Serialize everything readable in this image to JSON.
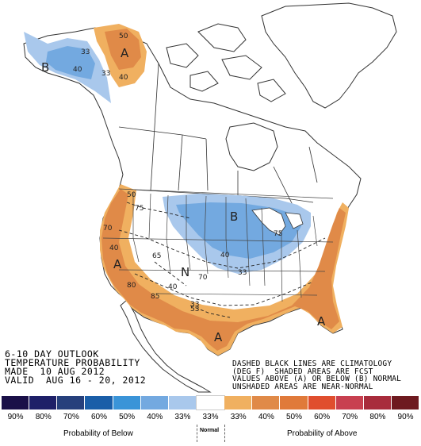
{
  "title": {
    "line1": "6-10 DAY OUTLOOK",
    "line2": "TEMPERATURE PROBABILITY",
    "line3": "MADE  10 AUG 2012",
    "line4": "VALID  AUG 16 - 20, 2012"
  },
  "note": {
    "line1": "DASHED BLACK LINES ARE CLIMATOLOGY",
    "line2": "(DEG F)  SHADED AREAS ARE FCST",
    "line3": "VALUES ABOVE (A) OR BELOW (B) NORMAL",
    "line4": "UNSHADED AREAS ARE NEAR-NORMAL"
  },
  "map": {
    "category_labels": {
      "alaska_below": "B",
      "alaska_above": "A",
      "central_below": "B",
      "west_above": "A",
      "texas_above": "A",
      "southeast_above": "A",
      "southwest_normal": "N"
    },
    "probability_labels": {
      "ak_b_40": "40",
      "ak_b_33": "33",
      "ak_a_50": "50",
      "ak_a_40": "40",
      "ak_a_33": "33",
      "c_b_40": "40",
      "c_b_33": "33",
      "w_a_50": "50",
      "w_a_40": "40",
      "sw_40": "40",
      "s_33": "33"
    },
    "climatology_labels": {
      "c75a": "75",
      "c75b": "75",
      "c70": "70",
      "c65": "65",
      "c80": "80",
      "c85": "85",
      "c70b": "70",
      "c53": "53"
    },
    "colors": {
      "above_33": "#f0b060",
      "above_40": "#e08a48",
      "below_33": "#a9c8ec",
      "below_40": "#73a9e0"
    }
  },
  "legend": {
    "swatches": [
      {
        "label": "90%",
        "color": "#1a1048"
      },
      {
        "label": "80%",
        "color": "#1e2068"
      },
      {
        "label": "70%",
        "color": "#26407c"
      },
      {
        "label": "60%",
        "color": "#1a5ea8"
      },
      {
        "label": "50%",
        "color": "#3a94d8"
      },
      {
        "label": "40%",
        "color": "#73a9e0"
      },
      {
        "label": "33%",
        "color": "#a9c8ec"
      },
      {
        "label": "33%",
        "color": "#ffffff"
      },
      {
        "label": "33%",
        "color": "#f0b060"
      },
      {
        "label": "40%",
        "color": "#e08a48"
      },
      {
        "label": "50%",
        "color": "#e07a3a"
      },
      {
        "label": "60%",
        "color": "#e04e2e"
      },
      {
        "label": "70%",
        "color": "#c84050"
      },
      {
        "label": "80%",
        "color": "#a82c3c"
      },
      {
        "label": "90%",
        "color": "#6e1a20"
      }
    ],
    "below_label": "Probability of Below",
    "normal_label": "Normal",
    "above_label": "Probability of Above"
  }
}
